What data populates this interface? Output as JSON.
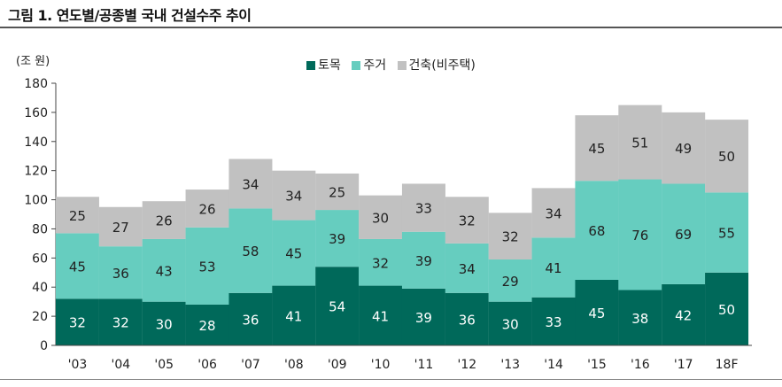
{
  "header": {
    "title": "그림 1. 연도별/공종별 국내 건설수주 추이"
  },
  "chart_data": {
    "type": "bar",
    "stacked": true,
    "unit_label": "(조 원)",
    "categories": [
      "'03",
      "'04",
      "'05",
      "'06",
      "'07",
      "'08",
      "'09",
      "'10",
      "'11",
      "'12",
      "'13",
      "'14",
      "'15",
      "'16",
      "'17",
      "18F"
    ],
    "series": [
      {
        "name": "토목",
        "color": "#00695a",
        "label_color": "#ffffff",
        "values": [
          32,
          32,
          30,
          28,
          36,
          41,
          54,
          41,
          39,
          36,
          30,
          33,
          45,
          38,
          42,
          50
        ]
      },
      {
        "name": "주거",
        "color": "#66cdbf",
        "label_color": "#222222",
        "values": [
          45,
          36,
          43,
          53,
          58,
          45,
          39,
          32,
          39,
          34,
          29,
          41,
          68,
          76,
          69,
          55
        ]
      },
      {
        "name": "건축(비주택)",
        "color": "#c1c1c1",
        "label_color": "#222222",
        "values": [
          25,
          27,
          26,
          26,
          34,
          34,
          25,
          30,
          33,
          32,
          32,
          34,
          45,
          51,
          49,
          50
        ]
      }
    ],
    "ylim": [
      0,
      180
    ],
    "yticks": [
      0,
      20,
      40,
      60,
      80,
      100,
      120,
      140,
      160,
      180
    ],
    "grid": false,
    "legend_position": "top-center"
  }
}
